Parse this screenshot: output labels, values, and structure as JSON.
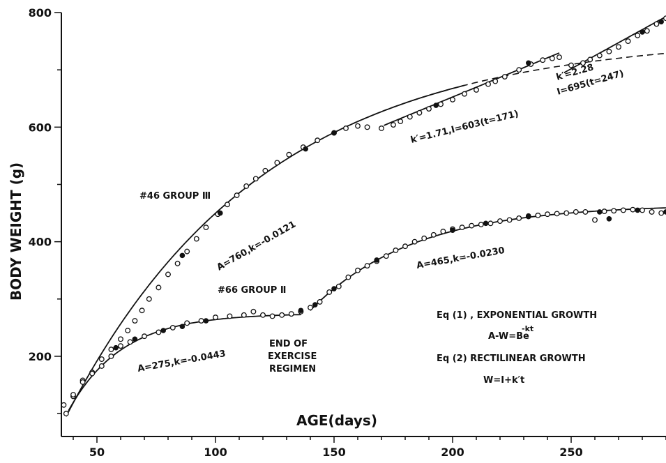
{
  "chart_data": {
    "type": "scatter",
    "title": "",
    "xlabel": "AGE(days)",
    "ylabel": "BODY WEIGHT (g)",
    "xlim": [
      35,
      290
    ],
    "ylim": [
      60,
      800
    ],
    "xticks": [
      50,
      100,
      150,
      200,
      250
    ],
    "yticks": [
      200,
      400,
      600,
      800
    ],
    "grid": false,
    "series": [
      {
        "name": "#46 GROUP III",
        "open": [
          [
            37,
            100
          ],
          [
            40,
            130
          ],
          [
            44,
            158
          ],
          [
            48,
            172
          ],
          [
            52,
            195
          ],
          [
            56,
            212
          ],
          [
            60,
            230
          ],
          [
            63,
            245
          ],
          [
            66,
            262
          ],
          [
            69,
            280
          ],
          [
            72,
            300
          ],
          [
            76,
            320
          ],
          [
            80,
            343
          ],
          [
            84,
            362
          ],
          [
            88,
            383
          ],
          [
            92,
            405
          ],
          [
            96,
            425
          ],
          [
            101,
            448
          ],
          [
            105,
            465
          ],
          [
            109,
            481
          ],
          [
            113,
            497
          ],
          [
            117,
            510
          ],
          [
            121,
            524
          ],
          [
            126,
            538
          ],
          [
            131,
            552
          ],
          [
            137,
            565
          ],
          [
            143,
            577
          ],
          [
            150,
            590
          ],
          [
            155,
            598
          ],
          [
            160,
            602
          ],
          [
            164,
            600
          ],
          [
            170,
            598
          ],
          [
            175,
            604
          ],
          [
            178,
            610
          ],
          [
            182,
            618
          ],
          [
            186,
            625
          ],
          [
            190,
            632
          ],
          [
            195,
            640
          ],
          [
            200,
            648
          ],
          [
            205,
            658
          ],
          [
            210,
            665
          ],
          [
            215,
            675
          ],
          [
            218,
            680
          ],
          [
            222,
            688
          ],
          [
            228,
            700
          ],
          [
            233,
            710
          ],
          [
            238,
            717
          ],
          [
            242,
            720
          ],
          [
            245,
            722
          ],
          [
            250,
            708
          ],
          [
            255,
            712
          ],
          [
            258,
            718
          ],
          [
            262,
            725
          ],
          [
            266,
            732
          ],
          [
            270,
            740
          ],
          [
            274,
            750
          ],
          [
            278,
            760
          ],
          [
            282,
            768
          ],
          [
            286,
            780
          ],
          [
            290,
            790
          ]
        ],
        "filled": [
          [
            86,
            376
          ],
          [
            102,
            450
          ],
          [
            138,
            562
          ],
          [
            150,
            590
          ],
          [
            193,
            638
          ],
          [
            232,
            712
          ],
          [
            280,
            766
          ],
          [
            288,
            784
          ]
        ]
      },
      {
        "name": "#66 GROUP II",
        "open": [
          [
            36,
            115
          ],
          [
            40,
            133
          ],
          [
            44,
            155
          ],
          [
            48,
            170
          ],
          [
            52,
            183
          ],
          [
            56,
            200
          ],
          [
            60,
            218
          ],
          [
            64,
            225
          ],
          [
            70,
            235
          ],
          [
            76,
            242
          ],
          [
            82,
            250
          ],
          [
            88,
            258
          ],
          [
            94,
            262
          ],
          [
            100,
            268
          ],
          [
            106,
            270
          ],
          [
            112,
            272
          ],
          [
            116,
            278
          ],
          [
            120,
            272
          ],
          [
            124,
            270
          ],
          [
            128,
            272
          ],
          [
            132,
            274
          ],
          [
            136,
            278
          ],
          [
            140,
            285
          ],
          [
            144,
            295
          ],
          [
            148,
            312
          ],
          [
            152,
            322
          ],
          [
            156,
            338
          ],
          [
            160,
            350
          ],
          [
            164,
            358
          ],
          [
            168,
            366
          ],
          [
            172,
            375
          ],
          [
            176,
            385
          ],
          [
            180,
            392
          ],
          [
            184,
            400
          ],
          [
            188,
            406
          ],
          [
            192,
            412
          ],
          [
            196,
            418
          ],
          [
            200,
            422
          ],
          [
            204,
            425
          ],
          [
            208,
            428
          ],
          [
            212,
            430
          ],
          [
            216,
            432
          ],
          [
            220,
            436
          ],
          [
            224,
            438
          ],
          [
            228,
            441
          ],
          [
            232,
            444
          ],
          [
            236,
            446
          ],
          [
            240,
            448
          ],
          [
            244,
            449
          ],
          [
            248,
            450
          ],
          [
            252,
            452
          ],
          [
            256,
            452
          ],
          [
            260,
            438
          ],
          [
            264,
            453
          ],
          [
            268,
            454
          ],
          [
            272,
            455
          ],
          [
            276,
            456
          ],
          [
            280,
            455
          ],
          [
            284,
            452
          ],
          [
            288,
            450
          ]
        ],
        "filled": [
          [
            58,
            215
          ],
          [
            66,
            230
          ],
          [
            78,
            245
          ],
          [
            86,
            252
          ],
          [
            96,
            262
          ],
          [
            136,
            280
          ],
          [
            142,
            290
          ],
          [
            150,
            318
          ],
          [
            168,
            368
          ],
          [
            200,
            420
          ],
          [
            214,
            432
          ],
          [
            232,
            445
          ],
          [
            262,
            452
          ],
          [
            266,
            440
          ],
          [
            278,
            455
          ],
          [
            290,
            452
          ]
        ]
      }
    ],
    "annotations": {
      "group_iii_label": "#46 GROUP Ⅲ",
      "group_ii_label": "#66 GROUP Ⅱ",
      "fit_g3_exp": "A=760,k=-0.0121",
      "fit_g2_exp_early": "A=275,k=-0.0443",
      "fit_g2_exp_late": "A=465,k=-0.0230",
      "fit_g3_rect_1": "k′=1.71,I=603(t=171)",
      "fit_g3_rect_2a": "k′=2.28",
      "fit_g3_rect_2b": "I=695(t=247)",
      "end_exercise": [
        "END OF",
        "EXERCISE",
        "REGIMEN"
      ],
      "legend_eq1a": "Eq (1) , EXPONENTIAL GROWTH",
      "legend_eq1b": "A-W=Be",
      "legend_eq1b_sup": "-kt",
      "legend_eq2a": "Eq (2)  RECTILINEAR GROWTH",
      "legend_eq2b": "W=I+k′t"
    }
  }
}
